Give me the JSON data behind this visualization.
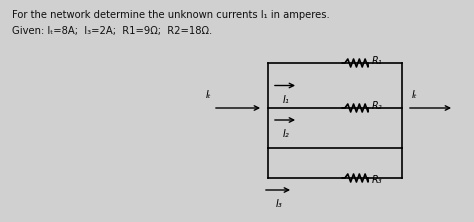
{
  "title_line1": "For the network determine the unknown currents I₁ in amperes.",
  "title_line2": "Given: Iₜ=8A;  I₃=2A;  R1=9Ω;  R2=18Ω.",
  "bg_color": "#d0d0d0",
  "text_color": "#111111",
  "r1_label": "R₁",
  "r2_label": "R₂",
  "r3_label": "R₃",
  "i1_label": "I₁",
  "i2_label": "I₂",
  "i3_label": "I₃",
  "it_label": "Iₜ",
  "it_out_label": "Iₜ"
}
